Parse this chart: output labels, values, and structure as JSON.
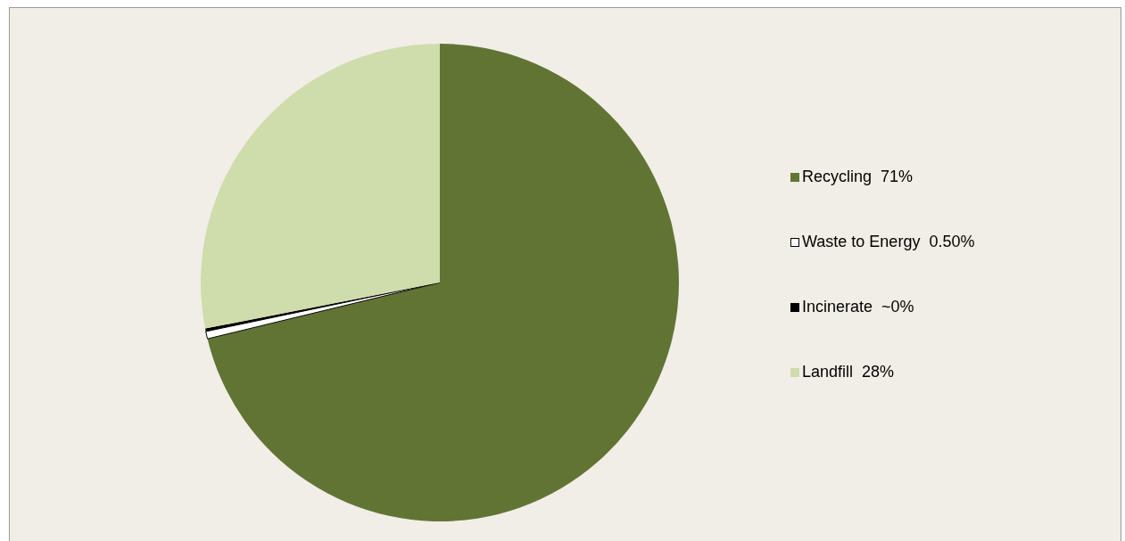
{
  "chart_data": {
    "type": "pie",
    "categories": [
      "Recycling",
      "Waste to Energy",
      "Incinerate",
      "Landfill"
    ],
    "values": [
      71,
      0.5,
      0.2,
      28
    ],
    "value_labels": [
      "71%",
      "0.50%",
      "~0%",
      "28%"
    ],
    "colors": [
      "#627434",
      "#ffffff",
      "#000000",
      "#cfdcab"
    ],
    "legend": "right"
  }
}
